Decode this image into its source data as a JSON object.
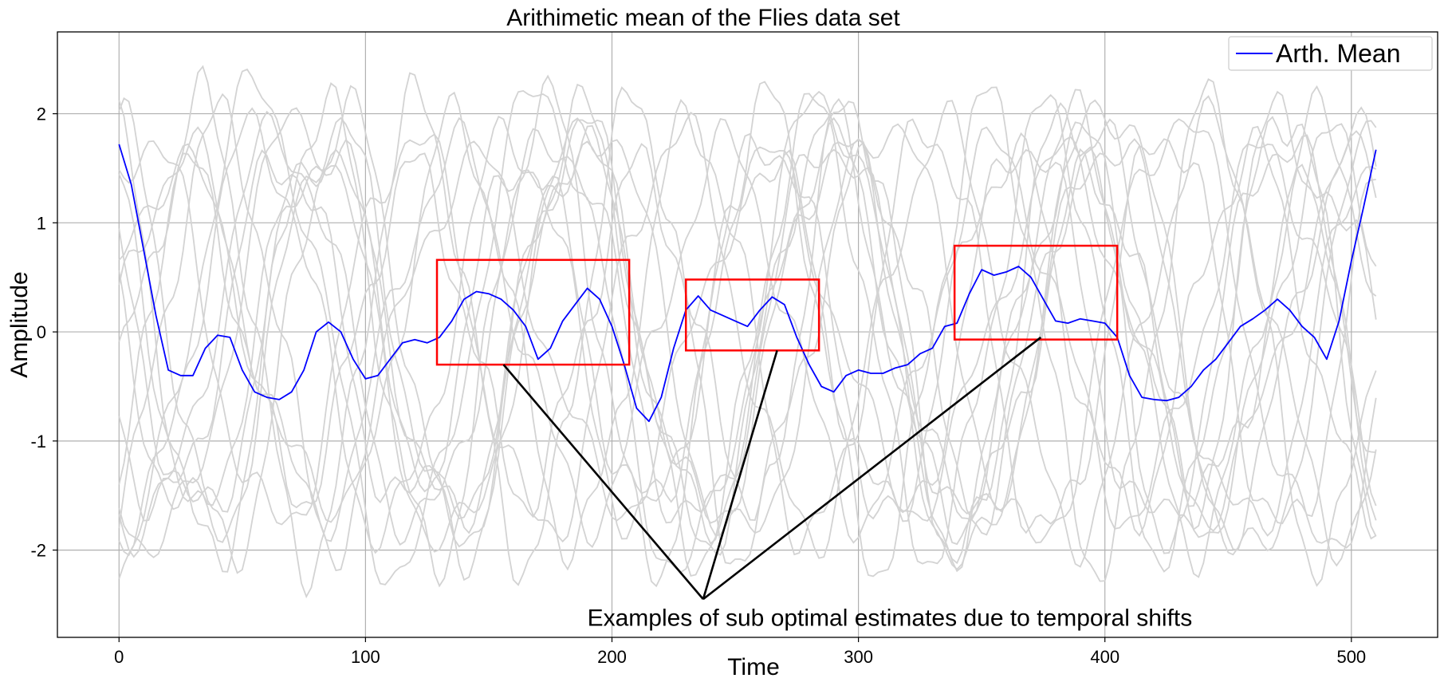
{
  "chart_data": {
    "type": "line",
    "title": "Arithimetic mean of the Flies data set",
    "xlabel": "Time",
    "ylabel": "Amplitude",
    "xlim": [
      -25,
      535
    ],
    "ylim": [
      -2.8,
      2.75
    ],
    "xticks": [
      0,
      100,
      200,
      300,
      400,
      500
    ],
    "xtick_labels": [
      "0",
      "100",
      "200",
      "300",
      "400",
      "500"
    ],
    "yticks": [
      -2,
      -1,
      0,
      1,
      2
    ],
    "ytick_labels": [
      "-2",
      "-1",
      "0",
      "1",
      "2"
    ],
    "grid": true,
    "legend": {
      "position": "top-right",
      "entries": [
        "Arth. Mean"
      ]
    },
    "colors": {
      "mean": "#0000ff",
      "samples": "#d3d3d3",
      "boxes": "#ff0000",
      "annotation": "#000000",
      "grid": "#b0b0b0"
    },
    "series": [
      {
        "name": "Arth. Mean",
        "x": [
          0,
          5,
          10,
          15,
          20,
          25,
          30,
          35,
          40,
          45,
          50,
          55,
          60,
          65,
          70,
          75,
          80,
          85,
          90,
          95,
          100,
          105,
          110,
          115,
          120,
          125,
          130,
          135,
          140,
          145,
          150,
          155,
          160,
          165,
          170,
          175,
          180,
          185,
          190,
          195,
          200,
          205,
          210,
          215,
          220,
          225,
          230,
          235,
          240,
          245,
          250,
          255,
          260,
          265,
          270,
          275,
          280,
          285,
          290,
          295,
          300,
          305,
          310,
          315,
          320,
          325,
          330,
          335,
          340,
          345,
          350,
          355,
          360,
          365,
          370,
          375,
          380,
          385,
          390,
          395,
          400,
          405,
          410,
          415,
          420,
          425,
          430,
          435,
          440,
          445,
          450,
          455,
          460,
          465,
          470,
          475,
          480,
          485,
          490,
          495,
          500,
          505,
          510
        ],
        "y": [
          1.72,
          1.35,
          0.75,
          0.15,
          -0.35,
          -0.4,
          -0.4,
          -0.15,
          -0.03,
          -0.05,
          -0.35,
          -0.55,
          -0.6,
          -0.62,
          -0.55,
          -0.35,
          0.0,
          0.09,
          0.0,
          -0.25,
          -0.43,
          -0.4,
          -0.25,
          -0.1,
          -0.07,
          -0.1,
          -0.05,
          0.1,
          0.3,
          0.37,
          0.35,
          0.3,
          0.2,
          0.05,
          -0.25,
          -0.15,
          0.1,
          0.25,
          0.4,
          0.3,
          0.05,
          -0.3,
          -0.7,
          -0.82,
          -0.6,
          -0.15,
          0.2,
          0.33,
          0.2,
          0.15,
          0.1,
          0.05,
          0.2,
          0.32,
          0.25,
          -0.05,
          -0.3,
          -0.5,
          -0.55,
          -0.4,
          -0.35,
          -0.38,
          -0.38,
          -0.33,
          -0.3,
          -0.2,
          -0.15,
          0.05,
          0.08,
          0.35,
          0.57,
          0.52,
          0.55,
          0.6,
          0.5,
          0.3,
          0.1,
          0.08,
          0.12,
          0.1,
          0.08,
          -0.05,
          -0.4,
          -0.6,
          -0.62,
          -0.63,
          -0.6,
          -0.5,
          -0.35,
          -0.25,
          -0.1,
          0.05,
          0.12,
          0.2,
          0.3,
          0.2,
          0.05,
          -0.05,
          -0.25,
          0.1,
          0.65,
          1.15,
          1.67
        ]
      }
    ],
    "sample_series_count": 16,
    "highlight_boxes": [
      {
        "x": [
          129,
          207
        ],
        "y": [
          -0.3,
          0.66
        ]
      },
      {
        "x": [
          230,
          284
        ],
        "y": [
          -0.17,
          0.48
        ]
      },
      {
        "x": [
          339,
          405
        ],
        "y": [
          -0.07,
          0.79
        ]
      }
    ],
    "annotation": {
      "text": "Examples of sub optimal estimates due to temporal shifts",
      "text_anchor": [
        237,
        -2.45
      ],
      "text_position": [
        190,
        -2.62
      ],
      "arrow_targets": [
        [
          156,
          -0.3
        ],
        [
          267,
          -0.17
        ],
        [
          374,
          -0.05
        ]
      ]
    }
  }
}
